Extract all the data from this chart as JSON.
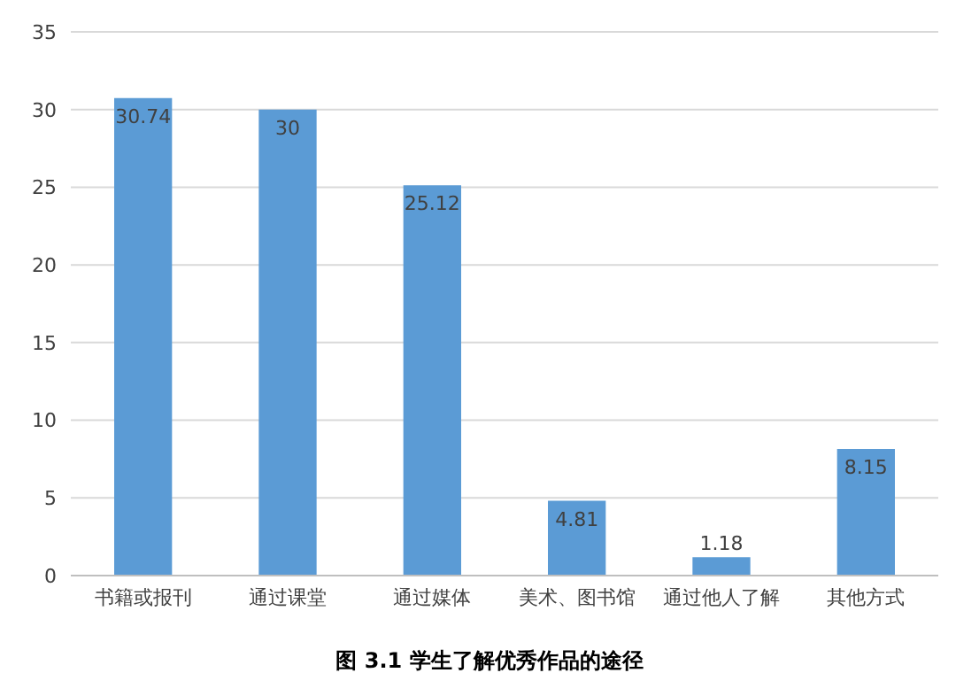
{
  "chart_data": {
    "type": "bar",
    "title": "图 3.1  学生了解优秀作品的途径",
    "categories": [
      "书籍或报刊",
      "通过课堂",
      "通过媒体",
      "美术、图书馆",
      "通过他人了解",
      "其他方式"
    ],
    "values": [
      30.74,
      30,
      25.12,
      4.81,
      1.18,
      8.15
    ],
    "color": "#5b9bd5",
    "ylim": [
      0,
      35
    ],
    "yticks": [
      0,
      5,
      10,
      15,
      20,
      25,
      30,
      35
    ],
    "grid": "y",
    "data_labels": true
  }
}
